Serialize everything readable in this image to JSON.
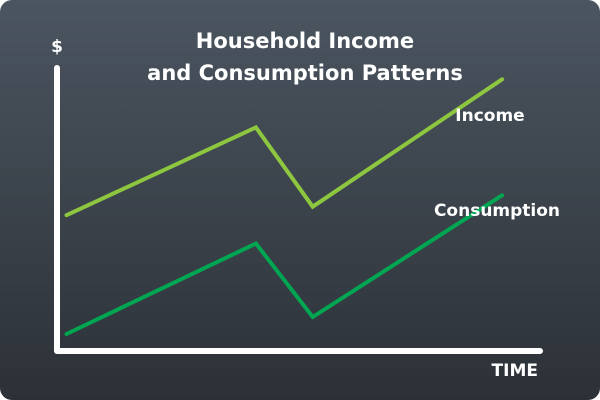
{
  "chart_data": {
    "type": "line",
    "title_lines": [
      "Household Income",
      "and Consumption Patterns"
    ],
    "xlabel": "TIME",
    "ylabel": "$",
    "x": [
      0,
      1,
      1.3,
      2.3
    ],
    "xlim": [
      -0.05,
      2.5
    ],
    "ylim": [
      0,
      10
    ],
    "grid": false,
    "series": [
      {
        "name": "Income",
        "color": "#8dc63f",
        "values": [
          4.8,
          7.9,
          5.1,
          9.6
        ]
      },
      {
        "name": "Consumption",
        "color": "#00a651",
        "values": [
          0.6,
          3.8,
          1.2,
          5.5
        ]
      }
    ]
  }
}
